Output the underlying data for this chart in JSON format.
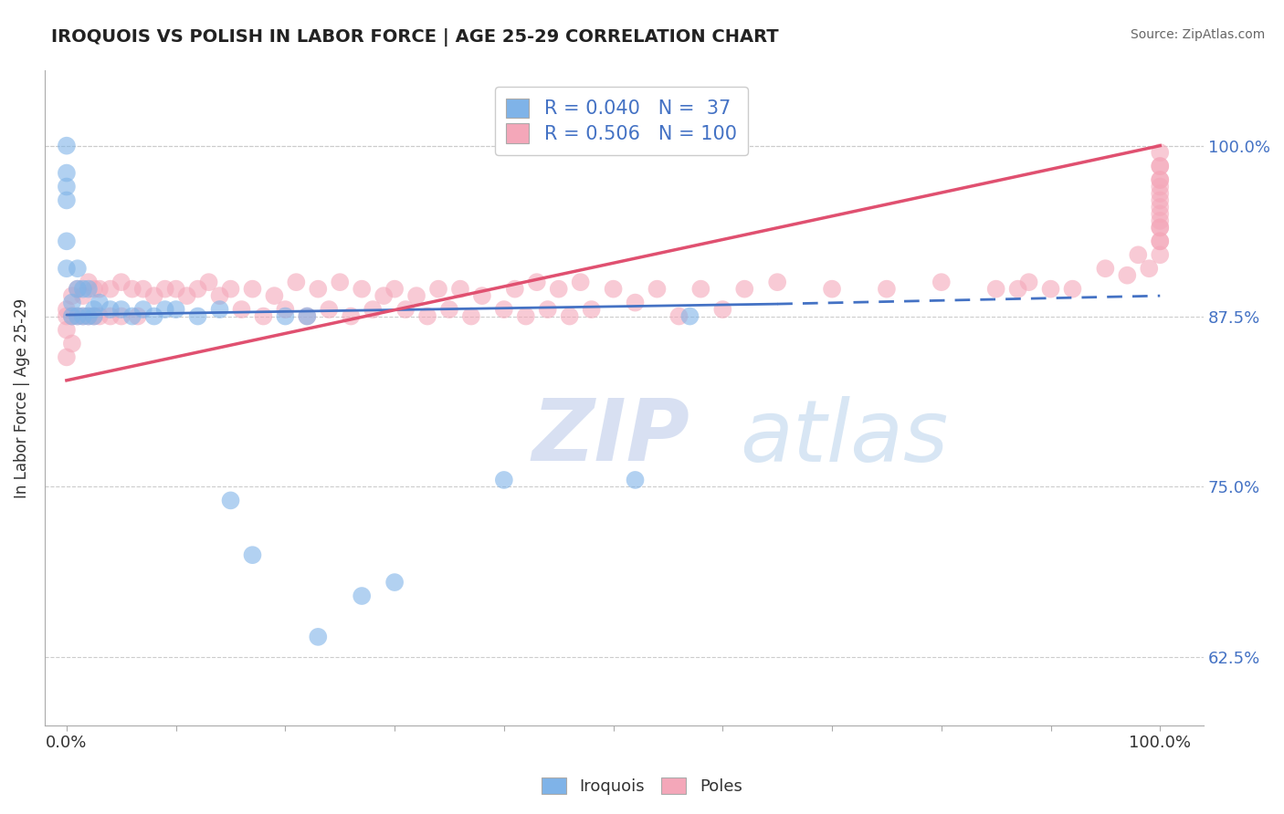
{
  "title": "IROQUOIS VS POLISH IN LABOR FORCE | AGE 25-29 CORRELATION CHART",
  "source_text": "Source: ZipAtlas.com",
  "ylabel": "In Labor Force | Age 25-29",
  "xlim": [
    -0.02,
    1.04
  ],
  "ylim": [
    0.575,
    1.055
  ],
  "xtick_positions": [
    0.0,
    0.1,
    0.2,
    0.3,
    0.4,
    0.5,
    0.6,
    0.7,
    0.8,
    0.9,
    1.0
  ],
  "xtick_labels": [
    "0.0%",
    "",
    "",
    "",
    "",
    "",
    "",
    "",
    "",
    "",
    "100.0%"
  ],
  "ytick_positions": [
    0.625,
    0.75,
    0.875,
    1.0
  ],
  "ytick_labels": [
    "62.5%",
    "75.0%",
    "87.5%",
    "100.0%"
  ],
  "iroquois_color": "#7fb3e8",
  "poles_color": "#f4a7b9",
  "iroquois_line_color": "#4472c4",
  "poles_line_color": "#e05070",
  "background_color": "#ffffff",
  "grid_color": "#dddddd",
  "title_fontsize": 14,
  "watermark_color": "#ccd9f0",
  "r_iroquois": 0.04,
  "n_iroquois": 37,
  "r_poles": 0.506,
  "n_poles": 100,
  "iroquois_x": [
    0.0,
    0.0,
    0.0,
    0.0,
    0.0,
    0.0,
    0.005,
    0.005,
    0.01,
    0.01,
    0.01,
    0.015,
    0.015,
    0.02,
    0.02,
    0.025,
    0.025,
    0.03,
    0.04,
    0.05,
    0.06,
    0.07,
    0.08,
    0.09,
    0.1,
    0.12,
    0.14,
    0.15,
    0.17,
    0.2,
    0.22,
    0.23,
    0.27,
    0.3,
    0.4,
    0.52,
    0.57
  ],
  "iroquois_y": [
    1.0,
    0.98,
    0.97,
    0.96,
    0.93,
    0.91,
    0.885,
    0.875,
    0.91,
    0.895,
    0.875,
    0.895,
    0.875,
    0.895,
    0.875,
    0.88,
    0.875,
    0.885,
    0.88,
    0.88,
    0.875,
    0.88,
    0.875,
    0.88,
    0.88,
    0.875,
    0.88,
    0.74,
    0.7,
    0.875,
    0.875,
    0.64,
    0.67,
    0.68,
    0.755,
    0.755,
    0.875
  ],
  "poles_x": [
    0.0,
    0.0,
    0.0,
    0.0,
    0.005,
    0.005,
    0.005,
    0.01,
    0.01,
    0.015,
    0.015,
    0.02,
    0.02,
    0.025,
    0.025,
    0.03,
    0.03,
    0.04,
    0.04,
    0.05,
    0.05,
    0.06,
    0.065,
    0.07,
    0.08,
    0.09,
    0.1,
    0.11,
    0.12,
    0.13,
    0.14,
    0.15,
    0.16,
    0.17,
    0.18,
    0.19,
    0.2,
    0.21,
    0.22,
    0.23,
    0.24,
    0.25,
    0.26,
    0.27,
    0.28,
    0.29,
    0.3,
    0.31,
    0.32,
    0.33,
    0.34,
    0.35,
    0.36,
    0.37,
    0.38,
    0.4,
    0.41,
    0.42,
    0.43,
    0.44,
    0.45,
    0.46,
    0.47,
    0.48,
    0.5,
    0.52,
    0.54,
    0.56,
    0.58,
    0.6,
    0.62,
    0.65,
    0.7,
    0.75,
    0.8,
    0.85,
    0.87,
    0.88,
    0.9,
    0.92,
    0.95,
    0.97,
    0.98,
    0.99,
    1.0,
    1.0,
    1.0,
    1.0,
    1.0,
    1.0,
    1.0,
    1.0,
    1.0,
    1.0,
    1.0,
    1.0,
    1.0,
    1.0,
    1.0,
    1.0
  ],
  "poles_y": [
    0.88,
    0.875,
    0.865,
    0.845,
    0.89,
    0.875,
    0.855,
    0.895,
    0.875,
    0.89,
    0.875,
    0.9,
    0.875,
    0.895,
    0.875,
    0.895,
    0.875,
    0.895,
    0.875,
    0.9,
    0.875,
    0.895,
    0.875,
    0.895,
    0.89,
    0.895,
    0.895,
    0.89,
    0.895,
    0.9,
    0.89,
    0.895,
    0.88,
    0.895,
    0.875,
    0.89,
    0.88,
    0.9,
    0.875,
    0.895,
    0.88,
    0.9,
    0.875,
    0.895,
    0.88,
    0.89,
    0.895,
    0.88,
    0.89,
    0.875,
    0.895,
    0.88,
    0.895,
    0.875,
    0.89,
    0.88,
    0.895,
    0.875,
    0.9,
    0.88,
    0.895,
    0.875,
    0.9,
    0.88,
    0.895,
    0.885,
    0.895,
    0.875,
    0.895,
    0.88,
    0.895,
    0.9,
    0.895,
    0.895,
    0.9,
    0.895,
    0.895,
    0.9,
    0.895,
    0.895,
    0.91,
    0.905,
    0.92,
    0.91,
    0.94,
    0.93,
    0.92,
    0.94,
    0.93,
    0.955,
    0.945,
    0.96,
    0.95,
    0.965,
    0.975,
    0.97,
    0.985,
    0.975,
    0.995,
    0.985
  ],
  "iroquois_trend": [
    0.0,
    0.65,
    0.876,
    0.884
  ],
  "iroquois_trend_dashed": [
    0.65,
    1.0,
    0.884,
    0.89
  ],
  "poles_trend": [
    0.0,
    1.0,
    0.828,
    1.0
  ],
  "legend_bottom": [
    "Iroquois",
    "Poles"
  ],
  "source_color": "#666666"
}
